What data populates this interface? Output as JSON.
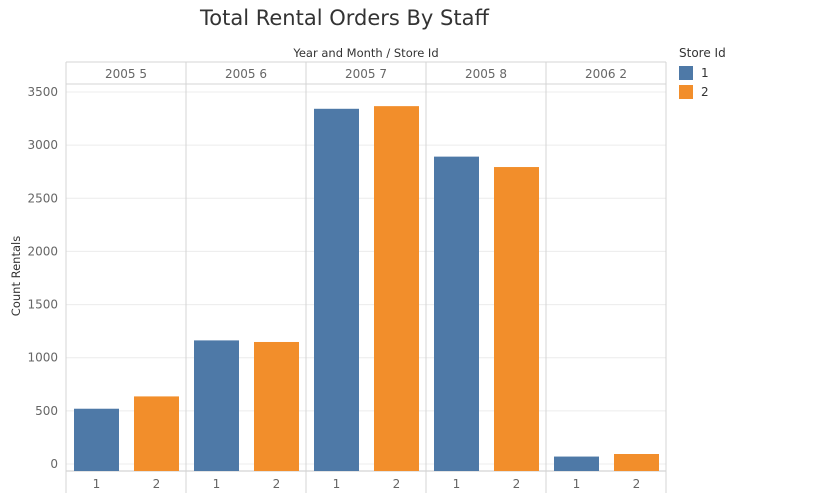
{
  "chart_data": {
    "type": "bar",
    "title": "Total Rental Orders By Staff",
    "column_header": "Year and Month  /  Store Id",
    "ylabel": "Count Rentals",
    "ylim": [
      0,
      3600
    ],
    "yticks": [
      0,
      500,
      1000,
      1500,
      2000,
      2500,
      3000,
      3500
    ],
    "groups": [
      "2005 5",
      "2005 6",
      "2005 7",
      "2005 8",
      "2006 2"
    ],
    "subcategories": [
      "1",
      "2"
    ],
    "series": [
      {
        "name": "1",
        "color": "#4e79a7",
        "values": [
          520,
          1163,
          3342,
          2892,
          70
        ]
      },
      {
        "name": "2",
        "color": "#f28e2b",
        "values": [
          636,
          1148,
          3367,
          2794,
          94
        ]
      }
    ],
    "legend": {
      "title": "Store Id",
      "position": "right",
      "items": [
        {
          "label": "1",
          "color": "#4e79a7"
        },
        {
          "label": "2",
          "color": "#f28e2b"
        }
      ]
    }
  }
}
